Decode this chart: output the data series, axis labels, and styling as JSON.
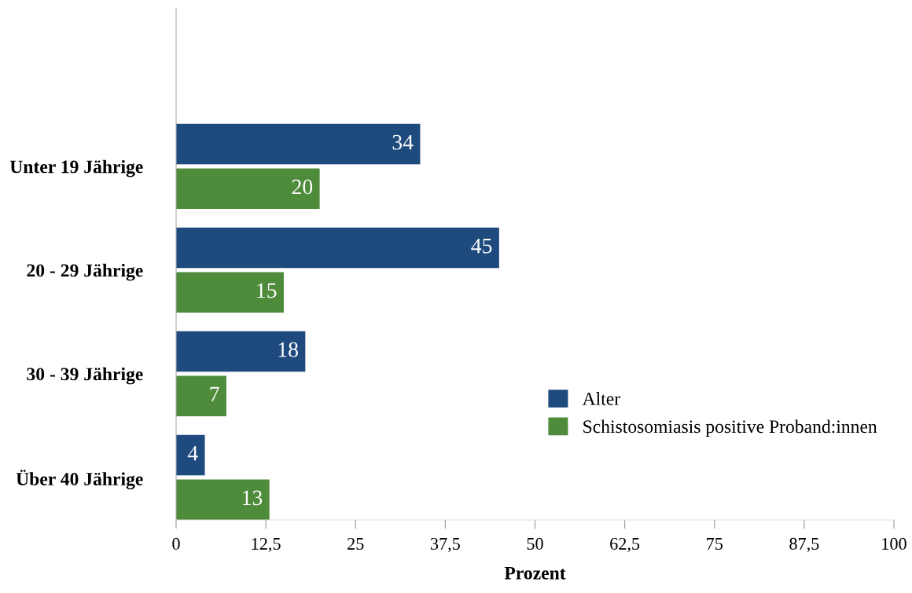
{
  "chart_data": {
    "type": "bar",
    "orientation": "horizontal",
    "xlabel": "Prozent",
    "categories": [
      "Unter 19 Jährige",
      "20 - 29 Jährige",
      "30 - 39 Jährige",
      "Über 40 Jährige"
    ],
    "series": [
      {
        "name": "Alter",
        "color": "#1f4a7e",
        "values": [
          34,
          45,
          18,
          4
        ]
      },
      {
        "name": "Schistosomiasis positive Proband:innen",
        "color": "#4e8b3a",
        "values": [
          20,
          15,
          7,
          13
        ]
      }
    ],
    "xlim": [
      0,
      100
    ],
    "xticks": [
      0,
      {
        "value": 12.5,
        "label": "12,5"
      },
      25,
      {
        "value": 37.5,
        "label": "37,5"
      },
      50,
      {
        "value": 62.5,
        "label": "62,5"
      },
      75,
      {
        "value": 87.5,
        "label": "87,5"
      },
      100
    ],
    "data_labels": true,
    "legend": "bottom right",
    "grid": false
  }
}
